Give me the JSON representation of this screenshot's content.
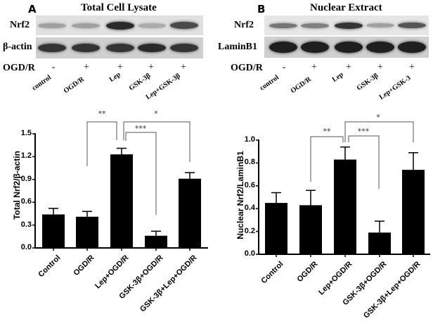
{
  "panels": [
    {
      "letter": "A",
      "blot": {
        "title": "Total Cell Lysate",
        "rows": [
          {
            "label": "Nrf2",
            "band_intensity": [
              0.35,
              0.35,
              0.9,
              0.3,
              0.75
            ]
          },
          {
            "label": "β-actin",
            "band_intensity": [
              0.85,
              0.85,
              0.85,
              0.9,
              0.85
            ]
          }
        ],
        "treatment_label": "OGD/R",
        "treatment_signs": [
          "-",
          "+",
          "+",
          "+",
          "+"
        ],
        "lane_labels": [
          "control",
          "OGD/R",
          "Lep",
          "GSK-3β",
          "Lep+GSK-3β"
        ]
      }
    },
    {
      "letter": "B",
      "blot": {
        "title": "Nuclear Extract",
        "rows": [
          {
            "label": "Nrf2",
            "band_intensity": [
              0.55,
              0.5,
              0.85,
              0.35,
              0.7
            ]
          },
          {
            "label": "LaminB1",
            "band_intensity": [
              0.95,
              0.95,
              0.95,
              0.95,
              0.95
            ]
          }
        ],
        "treatment_label": "OGD/R",
        "treatment_signs": [
          "-",
          "+",
          "+",
          "+",
          "+"
        ],
        "lane_labels": [
          "control",
          "OGD/R",
          "Lep",
          "GSK-3β",
          "Lep+GSK-3"
        ]
      }
    }
  ],
  "chart_data": [
    {
      "type": "bar",
      "panel": "A",
      "title": "",
      "xlabel": "",
      "ylabel": "Total Nrf2/β-actin",
      "categories": [
        "Control",
        "OGD/R",
        "Lep+OGD/R",
        "GSK-3β+OGD/R",
        "GSK-3β+Lep+OGD/R"
      ],
      "values": [
        0.44,
        0.41,
        1.23,
        0.16,
        0.91
      ],
      "errors": [
        0.08,
        0.07,
        0.08,
        0.06,
        0.08
      ],
      "ylim": [
        0.0,
        1.5
      ],
      "yticks": [
        "0.0",
        "0.3",
        "0.6",
        "0.9",
        "1.2",
        "1.5"
      ],
      "bar_color": "#000000",
      "grid": false,
      "legend": null,
      "significance": [
        {
          "from": 1,
          "to": 2,
          "label": "**"
        },
        {
          "from": 2,
          "to": 4,
          "label": "*"
        },
        {
          "from": 2,
          "to": 3,
          "label": "***"
        }
      ]
    },
    {
      "type": "bar",
      "panel": "B",
      "title": "",
      "xlabel": "",
      "ylabel": "Nuclear Nrf2/LaminB1",
      "categories": [
        "Control",
        "OGD/R",
        "Lep+OGD/R",
        "GSK-3β+OGD/R",
        "GSK-3β+Lep+OGD/R"
      ],
      "values": [
        0.45,
        0.43,
        0.83,
        0.19,
        0.74
      ],
      "errors": [
        0.09,
        0.13,
        0.11,
        0.1,
        0.15
      ],
      "ylim": [
        0.0,
        1.0
      ],
      "yticks": [
        "0.0",
        "0.2",
        "0.4",
        "0.6",
        "0.8",
        "1.0"
      ],
      "bar_color": "#000000",
      "grid": false,
      "legend": null,
      "significance": [
        {
          "from": 1,
          "to": 2,
          "label": "**"
        },
        {
          "from": 2,
          "to": 3,
          "label": "***"
        },
        {
          "from": 2,
          "to": 4,
          "label": "*"
        }
      ]
    }
  ]
}
